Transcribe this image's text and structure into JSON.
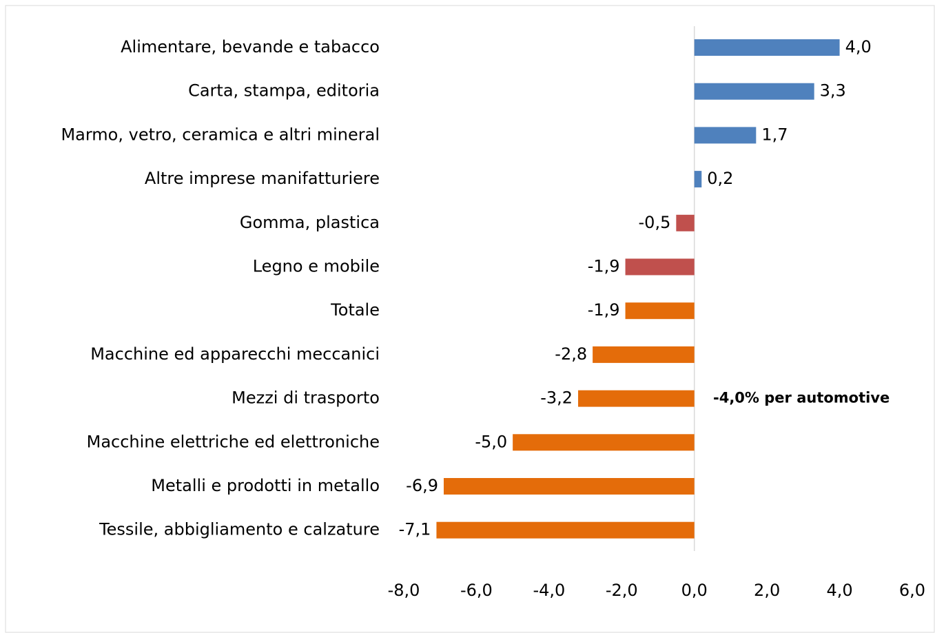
{
  "chart_data": {
    "type": "barh",
    "categories": [
      "Alimentare, bevande e tabacco",
      "Carta, stampa, editoria",
      "Marmo, vetro, ceramica e altri mineral",
      "Altre imprese manifatturiere",
      "Gomma, plastica",
      "Legno e mobile",
      "Totale",
      "Macchine ed apparecchi meccanici",
      "Mezzi di trasporto",
      "Macchine elettriche ed elettroniche",
      "Metalli e prodotti in metallo",
      "Tessile, abbigliamento e calzature"
    ],
    "values": [
      4.0,
      3.3,
      1.7,
      0.2,
      -0.5,
      -1.9,
      -1.9,
      -2.8,
      -3.2,
      -5.0,
      -6.9,
      -7.1
    ],
    "value_labels": [
      "4,0",
      "3,3",
      "1,7",
      "0,2",
      "-0,5",
      "-1,9",
      "-1,9",
      "-2,8",
      "-3,2",
      "-5,0",
      "-6,9",
      "-7,1"
    ],
    "colors": [
      "#4f81bd",
      "#4f81bd",
      "#4f81bd",
      "#4f81bd",
      "#c0504d",
      "#c0504d",
      "#e46c0a",
      "#e46c0a",
      "#e46c0a",
      "#e46c0a",
      "#e46c0a",
      "#e46c0a"
    ],
    "xlim": [
      -8,
      6
    ],
    "xticks": [
      {
        "value": -8,
        "label": "-8,0"
      },
      {
        "value": -6,
        "label": "-6,0"
      },
      {
        "value": -4,
        "label": "-4,0"
      },
      {
        "value": -2,
        "label": "-2,0"
      },
      {
        "value": 0,
        "label": "0,0"
      },
      {
        "value": 2,
        "label": "2,0"
      },
      {
        "value": 4,
        "label": "4,0"
      },
      {
        "value": 6,
        "label": "6,0"
      }
    ],
    "annotation": "-4,0% per automotive",
    "annotation_color": "#c00000"
  }
}
